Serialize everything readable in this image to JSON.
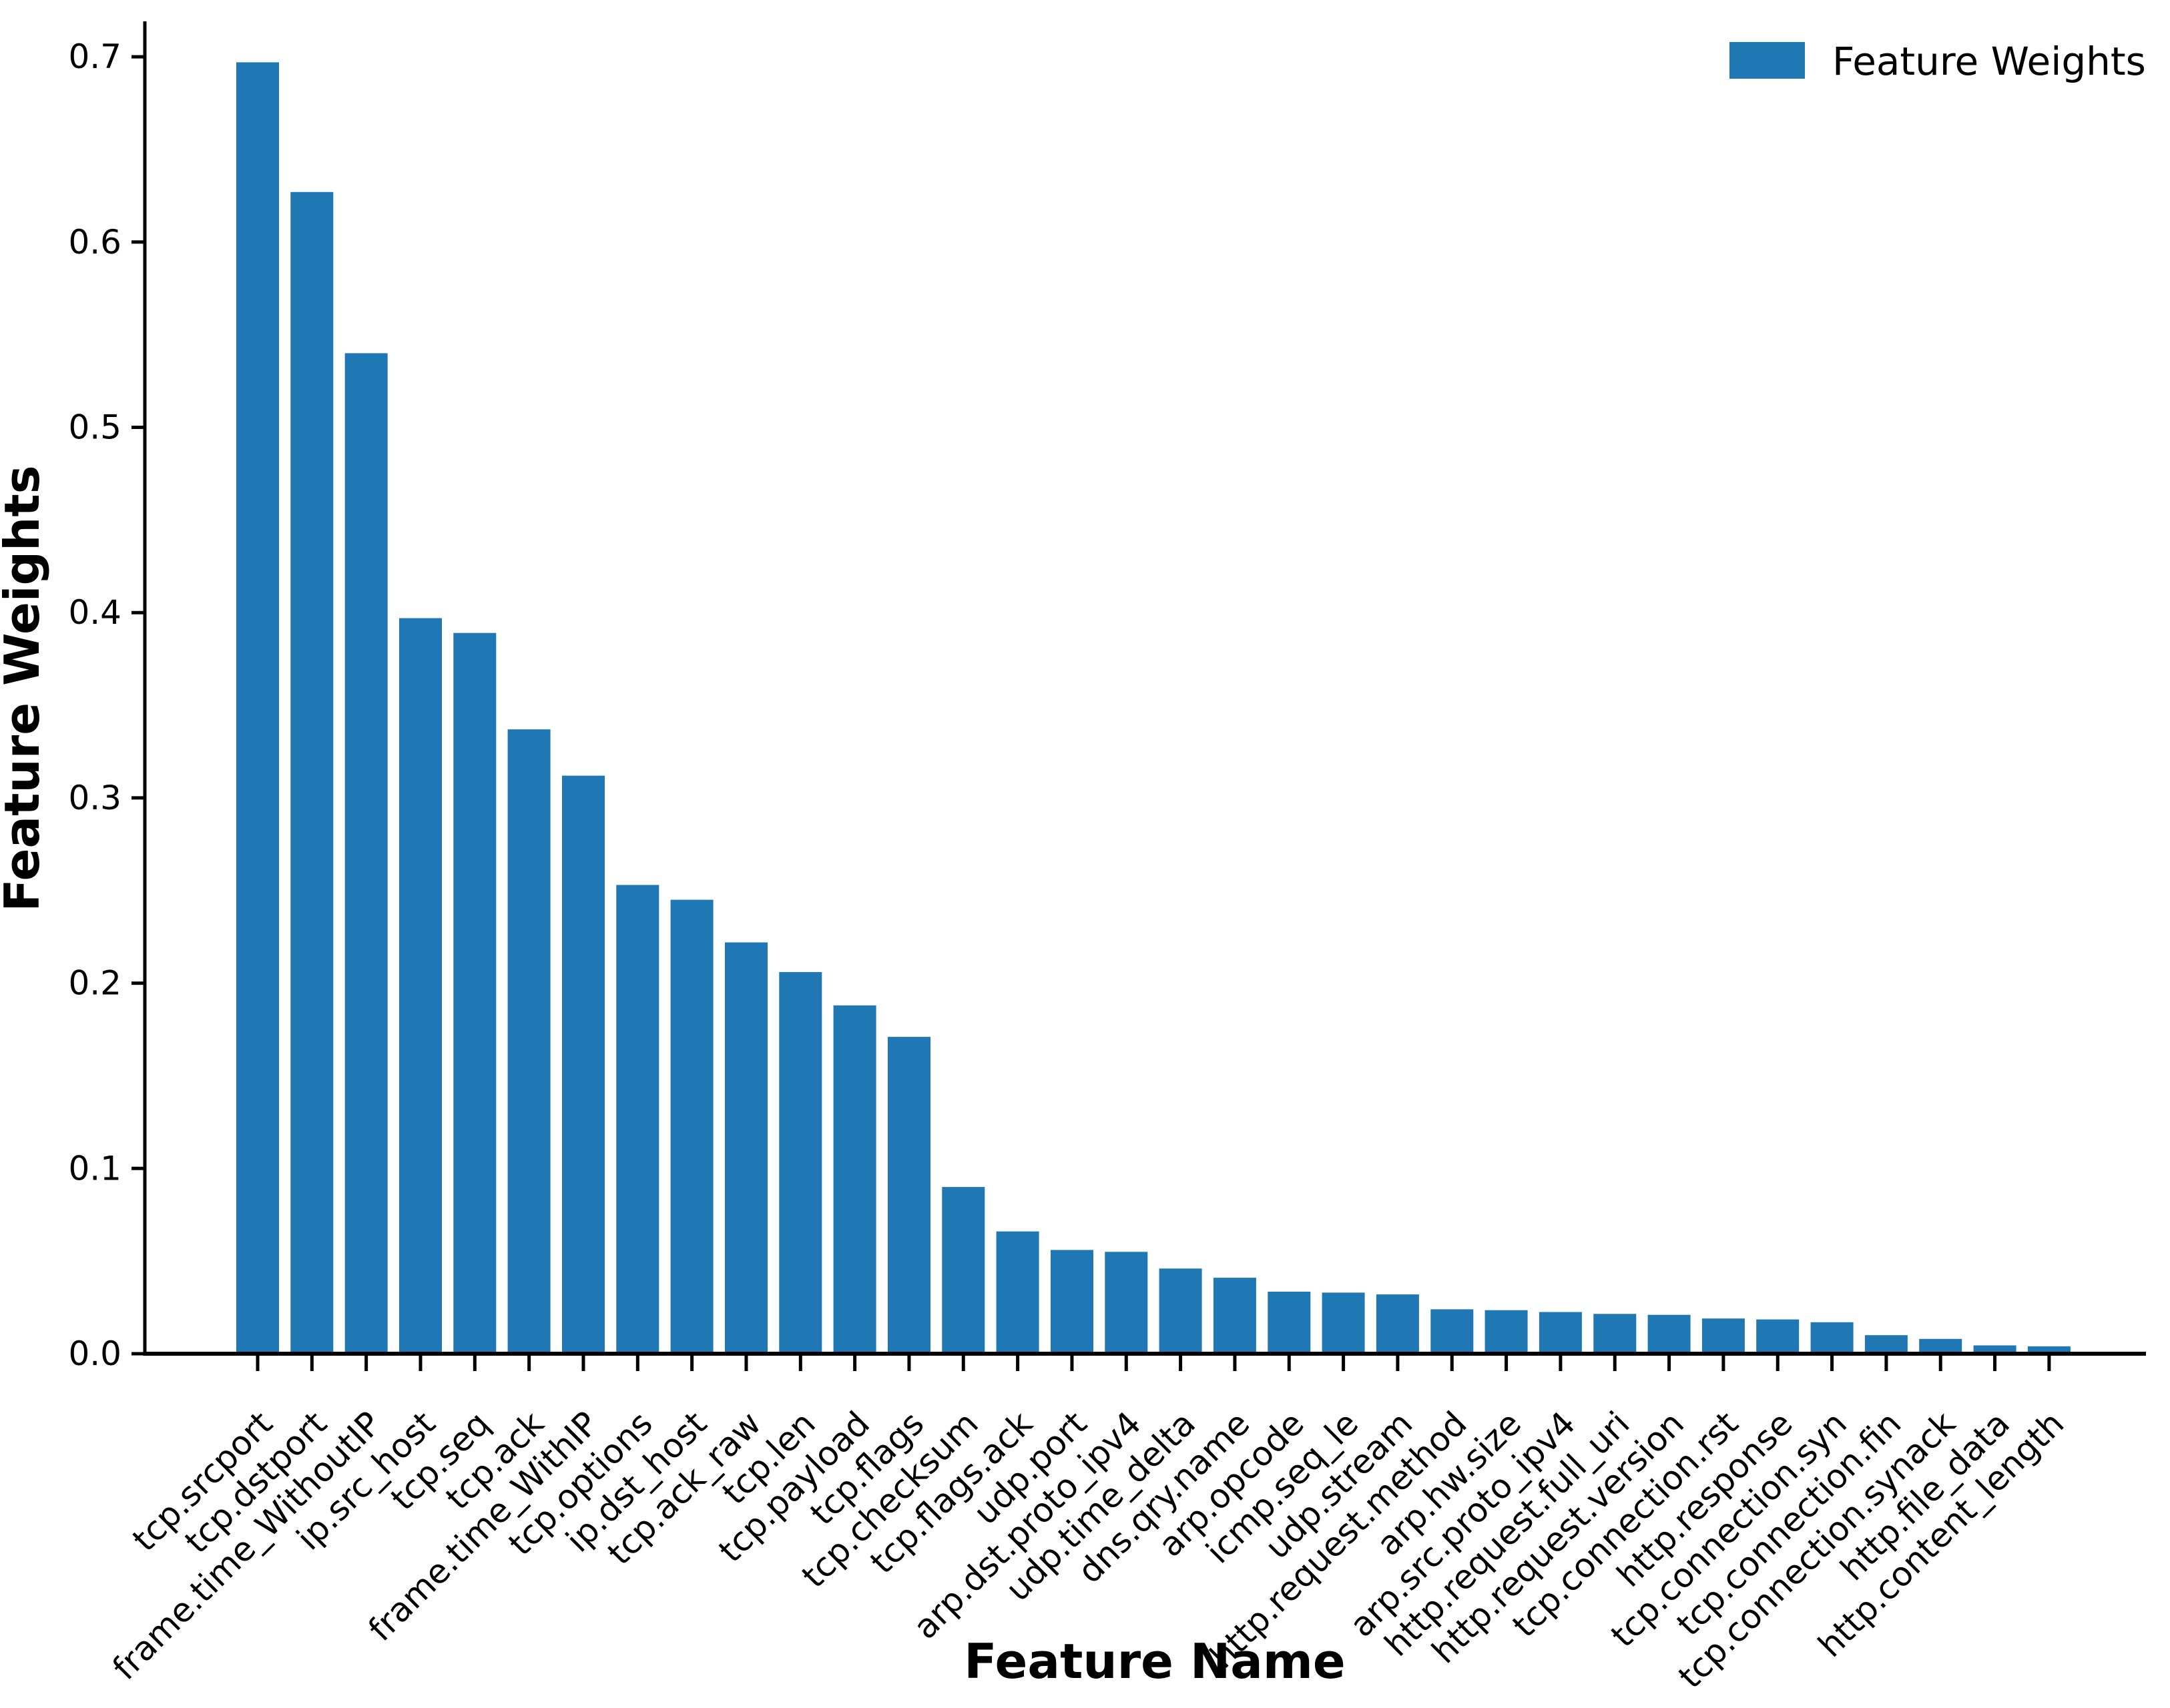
{
  "figure": {
    "background": "#ffffff",
    "bar_color": "#1f77b4",
    "axis_color": "#000000",
    "text_color": "#000000"
  },
  "legend": {
    "label": "Feature Weights",
    "swatch_color": "#1f77b4",
    "position": "upper right",
    "frame": false
  },
  "chart_data": {
    "type": "bar",
    "title": "",
    "xlabel": "Feature Name",
    "ylabel": "Feature Weights",
    "ylim": [
      0.0,
      0.73
    ],
    "yticks": [
      0.0,
      0.1,
      0.2,
      0.3,
      0.4,
      0.5,
      0.6,
      0.7
    ],
    "grid": false,
    "x_tick_rotation": 45,
    "series_name": "Feature Weights",
    "categories": [
      "tcp.srcport",
      "tcp.dstport",
      "frame.time_WithoutIP",
      "ip.src_host",
      "tcp.seq",
      "tcp.ack",
      "frame.time_WithIP",
      "tcp.options",
      "ip.dst_host",
      "tcp.ack_raw",
      "tcp.len",
      "tcp.payload",
      "tcp.flags",
      "tcp.checksum",
      "tcp.flags.ack",
      "udp.port",
      "arp.dst.proto_ipv4",
      "udp.time_delta",
      "dns.qry.name",
      "arp.opcode",
      "icmp.seq_le",
      "udp.stream",
      "http.request.method",
      "arp.hw.size",
      "arp.src.proto_ipv4",
      "http.request.full_uri",
      "http.request.version",
      "tcp.connection.rst",
      "http.response",
      "tcp.connection.syn",
      "tcp.connection.fin",
      "tcp.connection.synack",
      "http.file_data",
      "http.content_length"
    ],
    "values": [
      0.697,
      0.627,
      0.54,
      0.397,
      0.389,
      0.337,
      0.312,
      0.253,
      0.245,
      0.222,
      0.206,
      0.188,
      0.171,
      0.09,
      0.066,
      0.056,
      0.055,
      0.046,
      0.041,
      0.0335,
      0.033,
      0.032,
      0.024,
      0.0235,
      0.0225,
      0.0215,
      0.021,
      0.019,
      0.0185,
      0.017,
      0.01,
      0.008,
      0.0045,
      0.004
    ]
  }
}
